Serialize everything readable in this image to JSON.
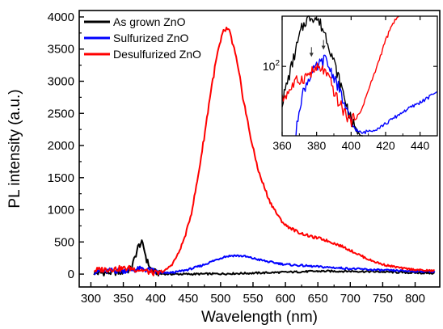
{
  "chart_data": [
    {
      "type": "line",
      "title": "",
      "xlabel": "Wavelength (nm)",
      "ylabel": "PL intensity (a.u.)",
      "xlim": [
        282,
        838
      ],
      "ylim": [
        -200,
        4100
      ],
      "xticks": [
        300,
        350,
        400,
        450,
        500,
        550,
        600,
        650,
        700,
        750,
        800
      ],
      "yticks": [
        0,
        500,
        1000,
        1500,
        2000,
        2500,
        3000,
        3500,
        4000
      ],
      "legend_position": "top-left",
      "grid": false,
      "series": [
        {
          "name": "As grown ZnO",
          "color": "#000000",
          "x": [
            305,
            320,
            340,
            355,
            362,
            368,
            373,
            378,
            382,
            386,
            392,
            398,
            405,
            420,
            450,
            500,
            550,
            600,
            650,
            700,
            750,
            800,
            830
          ],
          "y": [
            15,
            20,
            25,
            40,
            90,
            260,
            430,
            490,
            400,
            220,
            90,
            40,
            10,
            0,
            0,
            5,
            15,
            30,
            45,
            45,
            35,
            20,
            15
          ]
        },
        {
          "name": "Sulfurized ZnO",
          "color": "#0000ff",
          "x": [
            305,
            330,
            360,
            380,
            395,
            410,
            430,
            450,
            470,
            490,
            505,
            520,
            535,
            550,
            575,
            600,
            650,
            700,
            750,
            800,
            830
          ],
          "y": [
            40,
            50,
            60,
            80,
            50,
            10,
            30,
            70,
            130,
            210,
            270,
            290,
            280,
            245,
            190,
            150,
            115,
            85,
            60,
            45,
            40
          ]
        },
        {
          "name": "Desulfurized ZnO",
          "color": "#ff0000",
          "x": [
            305,
            330,
            360,
            380,
            395,
            405,
            415,
            425,
            435,
            445,
            455,
            465,
            475,
            485,
            495,
            505,
            510,
            515,
            522,
            530,
            540,
            550,
            560,
            575,
            590,
            600,
            620,
            640,
            655,
            670,
            690,
            710,
            730,
            750,
            780,
            810,
            830
          ],
          "y": [
            60,
            80,
            90,
            60,
            20,
            10,
            60,
            150,
            320,
            580,
            950,
            1500,
            2150,
            2850,
            3420,
            3780,
            3810,
            3720,
            3450,
            3020,
            2450,
            1950,
            1550,
            1150,
            880,
            760,
            650,
            580,
            550,
            500,
            420,
            320,
            220,
            150,
            90,
            60,
            50
          ]
        }
      ]
    },
    {
      "type": "line",
      "title": "",
      "xlabel": "",
      "ylabel": "",
      "xlim": [
        360,
        450
      ],
      "ylim": [
        0,
        1
      ],
      "xticks": [
        360,
        380,
        400,
        420,
        440
      ],
      "ytick_labels": [
        "10",
        "2"
      ],
      "ytick_position": 0.58,
      "grid": false,
      "series": [
        {
          "name": "As grown ZnO",
          "color": "#000000",
          "x": [
            360,
            364,
            368,
            371,
            374,
            377,
            379,
            382,
            385,
            388,
            392,
            396,
            400,
            404,
            407
          ],
          "y": [
            0.28,
            0.5,
            0.72,
            0.88,
            0.97,
            1.0,
            0.99,
            0.94,
            0.85,
            0.72,
            0.52,
            0.33,
            0.13,
            0.02,
            0.0
          ]
        },
        {
          "name": "Sulfurized ZnO",
          "color": "#0000ff",
          "x": [
            368,
            370,
            373,
            376,
            379,
            382,
            385,
            388,
            391,
            394,
            397,
            400,
            403,
            406,
            410,
            415,
            420,
            425,
            430,
            435,
            440,
            445,
            450
          ],
          "y": [
            0.0,
            0.25,
            0.4,
            0.5,
            0.55,
            0.6,
            0.64,
            0.55,
            0.47,
            0.35,
            0.22,
            0.1,
            0.05,
            0.02,
            0.04,
            0.06,
            0.1,
            0.15,
            0.2,
            0.24,
            0.28,
            0.32,
            0.38
          ]
        },
        {
          "name": "Desulfurized ZnO",
          "color": "#ff0000",
          "x": [
            360,
            364,
            368,
            372,
            376,
            380,
            384,
            388,
            392,
            396,
            400,
            405,
            410,
            415,
            420,
            425,
            428
          ],
          "y": [
            0.3,
            0.38,
            0.45,
            0.48,
            0.52,
            0.56,
            0.55,
            0.45,
            0.3,
            0.2,
            0.12,
            0.18,
            0.38,
            0.58,
            0.8,
            0.96,
            1.0
          ]
        }
      ],
      "annotations": [
        {
          "type": "arrow",
          "x": 377,
          "y": 0.66
        },
        {
          "type": "arrow",
          "x": 384,
          "y": 0.72
        }
      ]
    }
  ]
}
